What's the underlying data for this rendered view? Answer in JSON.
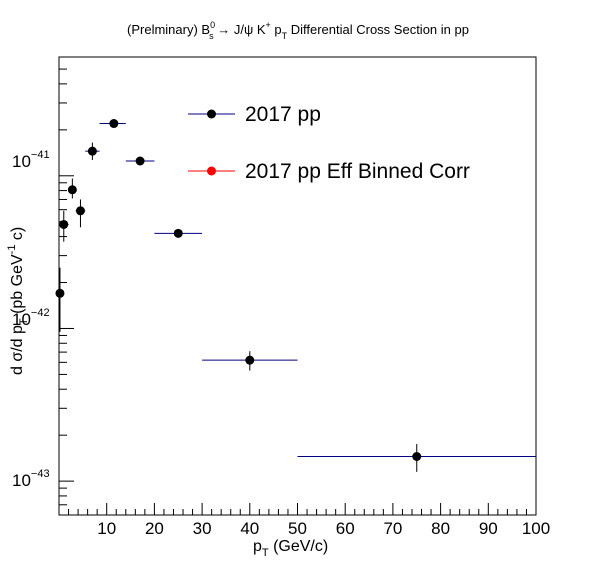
{
  "chart_data": {
    "type": "scatter",
    "title": {
      "prefix": "(Prelminary) B",
      "sup1": "0",
      "sub1": "s",
      "mid": " → J/ψ K",
      "sup2": "+",
      "p": " p",
      "sub2": "T",
      "suffix": " Differential Cross Section in pp"
    },
    "xlabel": {
      "main": "p",
      "sub": "T",
      "rest": " (GeV/c)"
    },
    "ylabel": {
      "a": "d σ/d p",
      "sub": "T",
      "b": "  (pb GeV",
      "sup": "-1",
      "c": " c)"
    },
    "x_scale": "linear",
    "y_scale": "log",
    "xlim": [
      0,
      100
    ],
    "ylim": [
      6e-44,
      6e-41
    ],
    "x_ticks": [
      10,
      20,
      30,
      40,
      50,
      60,
      70,
      80,
      90,
      100
    ],
    "x_tick_labels": [
      "10",
      "20",
      "30",
      "40",
      "50",
      "60",
      "70",
      "80",
      "90",
      "100"
    ],
    "y_ticks": [
      1e-43,
      1e-42,
      1e-41
    ],
    "y_tick_labels": [
      {
        "base": "10",
        "exp": "−43"
      },
      {
        "base": "10",
        "exp": "−42"
      },
      {
        "base": "10",
        "exp": "−41"
      }
    ],
    "grid": false,
    "legend_placement": "top-right",
    "series": [
      {
        "name": "2017 pp",
        "color": "#000080",
        "marker_color": "#000000",
        "points": [
          {
            "x": 0.2,
            "xlo": 0,
            "xhi": 1,
            "y": 1.7e-42,
            "ylo": 9.5e-43,
            "yhi": 2.5e-42
          },
          {
            "x": 1,
            "xlo": 0,
            "xhi": 2,
            "y": 4.8e-42,
            "ylo": 3.7e-42,
            "yhi": 5.9e-42
          },
          {
            "x": 2.8,
            "xlo": 2,
            "xhi": 3.5,
            "y": 8.1e-42,
            "ylo": 7.1e-42,
            "yhi": 9.6e-42
          },
          {
            "x": 4.5,
            "xlo": 3.5,
            "xhi": 5.5,
            "y": 5.9e-42,
            "ylo": 4.6e-42,
            "yhi": 7e-42
          },
          {
            "x": 7,
            "xlo": 5.5,
            "xhi": 8.5,
            "y": 1.45e-41,
            "ylo": 1.27e-41,
            "yhi": 1.65e-41
          },
          {
            "x": 11.5,
            "xlo": 8.5,
            "xhi": 14,
            "y": 2.2e-41,
            "ylo": 2.08e-41,
            "yhi": 2.35e-41
          },
          {
            "x": 17,
            "xlo": 14,
            "xhi": 20,
            "y": 1.25e-41,
            "ylo": 1.2e-41,
            "yhi": 1.31e-41
          },
          {
            "x": 25,
            "xlo": 20,
            "xhi": 30,
            "y": 4.2e-42,
            "ylo": 4e-42,
            "yhi": 4.4e-42
          },
          {
            "x": 40,
            "xlo": 30,
            "xhi": 50,
            "y": 6.2e-43,
            "ylo": 5.3e-43,
            "yhi": 7.1e-43
          },
          {
            "x": 75,
            "xlo": 50,
            "xhi": 100,
            "y": 1.45e-43,
            "ylo": 1.15e-43,
            "yhi": 1.75e-43
          }
        ]
      },
      {
        "name": "2017 pp Eff Binned Corr",
        "color": "#ff0000",
        "marker_color": "#ff0000",
        "points": []
      }
    ]
  }
}
